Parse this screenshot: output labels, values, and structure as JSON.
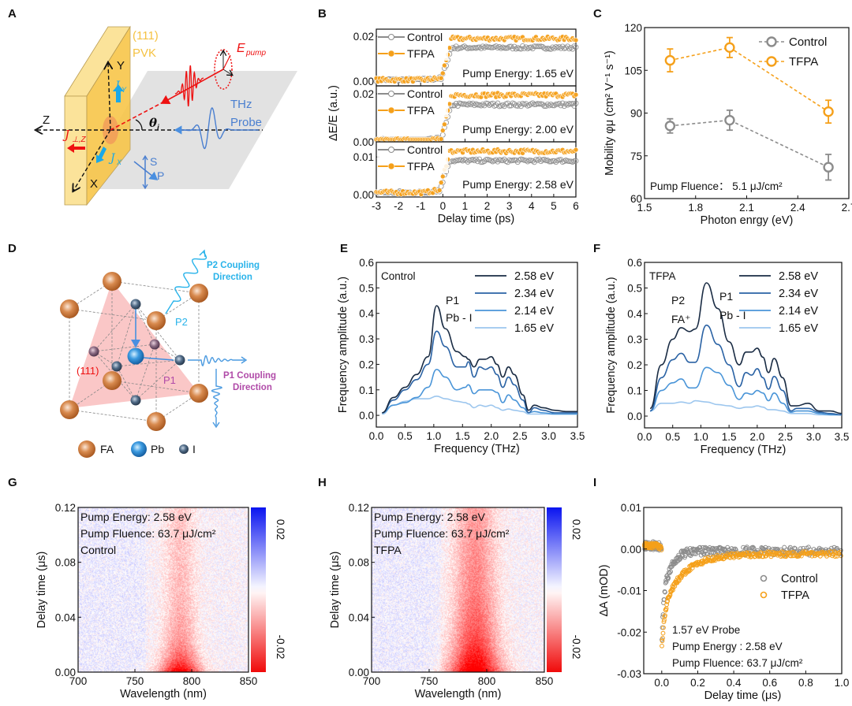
{
  "panels": {
    "A": {
      "letter": "A",
      "facet": "(111)",
      "material": "PVK",
      "e_pump": "E",
      "e_pump_sub": "pump",
      "axis_y": "Y",
      "axis_z": "Z",
      "axis_x": "X",
      "theta": "θ",
      "theta_sub": "i",
      "thz1": "THz",
      "thz2": "Probe",
      "j_perp": "J",
      "j_perp_sub": "⊥,Z",
      "j_y": "J",
      "j_y_sub": "Y",
      "j_x": "J",
      "j_x_sub": "X",
      "pol_s": "S",
      "pol_p": "P"
    },
    "D": {
      "letter": "D",
      "p2_dir1": "P2 Coupling",
      "p2_dir2": "Direction",
      "p2": "P2",
      "facet": "(111)",
      "p1": "P1",
      "p1_dir1": "P1 Coupling",
      "p1_dir2": "Direction",
      "legend": [
        "FA",
        "Pb",
        "I"
      ]
    },
    "B": {
      "letter": "B"
    },
    "C": {
      "letter": "C"
    },
    "E": {
      "letter": "E"
    },
    "F": {
      "letter": "F"
    },
    "G": {
      "letter": "G"
    },
    "H": {
      "letter": "H"
    },
    "I": {
      "letter": "I"
    }
  },
  "colors": {
    "control": "#8c8c8c",
    "tfpa": "#f5a01a",
    "e258": "#1a2c44",
    "e234": "#2a62a4",
    "e214": "#4a95d8",
    "e165": "#9cc6ee",
    "red": "#ee1111",
    "blue": "#1a1aee",
    "facet": "#f5c242"
  },
  "chart_data": [
    {
      "id": "B",
      "type": "scatter",
      "xlabel": "Delay time (ps)",
      "ylabel": "ΔE/E (a.u.)",
      "xlim": [
        -3,
        6
      ],
      "xticks": [
        "-3",
        "-2",
        "-1",
        "0",
        "1",
        "2",
        "3",
        "4",
        "5",
        "6"
      ],
      "legend": [
        "Control",
        "TFPA"
      ],
      "subplots": [
        {
          "annotation": "Pump Energy: 1.65 eV",
          "ylim": [
            -0.0021,
            0.0232
          ],
          "yticks": [
            [
              "0.00",
              0
            ],
            [
              "0.02",
              0.02
            ]
          ],
          "control_plateau": 0.015,
          "tfpa_plateau": 0.019,
          "rise_start_ps": -0.1,
          "rise_end_ps": 0.4
        },
        {
          "annotation": "Pump Energy: 2.00 eV",
          "ylim": [
            0.0,
            0.0233
          ],
          "yticks": [
            [
              "0.00",
              0
            ],
            [
              "0.02",
              0.02
            ]
          ],
          "control_plateau": 0.0155,
          "tfpa_plateau": 0.0195,
          "rise_start_ps": -0.1,
          "rise_end_ps": 0.4
        },
        {
          "annotation": "Pump Energy: 2.58 eV",
          "ylim": [
            -0.0006,
            0.014
          ],
          "yticks": [
            [
              "0.00",
              0
            ],
            [
              "0.01",
              0.01
            ]
          ],
          "control_plateau": 0.009,
          "tfpa_plateau": 0.0115,
          "rise_start_ps": -0.2,
          "rise_end_ps": 0.3
        }
      ]
    },
    {
      "id": "C",
      "type": "line",
      "xlabel": "Photon enrgy (eV)",
      "ylabel": "Mobility φμ (cm² V⁻¹ s⁻¹)",
      "xlim": [
        1.5,
        2.7
      ],
      "ylim": [
        60,
        120
      ],
      "xticks": [
        "1.5",
        "1.8",
        "2.1",
        "2.4",
        "2.7"
      ],
      "yticks": [
        "60",
        "75",
        "90",
        "105",
        "120"
      ],
      "annotation": "Pump Fluence： 5.1 μJ/cm²",
      "legend_position": "top-right",
      "x": [
        1.65,
        2.0,
        2.58
      ],
      "series": [
        {
          "name": "Control",
          "values": [
            85.5,
            87.5,
            71.0
          ],
          "errors": [
            2.5,
            3.5,
            4.5
          ]
        },
        {
          "name": "TFPA",
          "values": [
            108.5,
            113.0,
            90.5
          ],
          "errors": [
            4.0,
            3.5,
            4.0
          ]
        }
      ]
    },
    {
      "id": "E",
      "type": "line",
      "label": "Control",
      "xlabel": "Frequency (THz)",
      "ylabel": "Frequency amplitude (a.u.)",
      "xlim": [
        0,
        3.5
      ],
      "ylim": [
        -0.046,
        0.6
      ],
      "xticks": [
        "0.0",
        "0.5",
        "1.0",
        "1.5",
        "2.0",
        "2.5",
        "3.0",
        "3.5"
      ],
      "yticks": [
        "0.0",
        "0.1",
        "0.2",
        "0.3",
        "0.4",
        "0.5",
        "0.6"
      ],
      "annotations": [
        "P1",
        "Pb - I"
      ],
      "x": [
        0.1,
        0.3,
        0.5,
        0.7,
        0.9,
        1.05,
        1.2,
        1.4,
        1.55,
        1.6,
        1.7,
        1.8,
        1.9,
        2.0,
        2.1,
        2.2,
        2.3,
        2.4,
        2.55,
        2.65,
        2.75,
        2.9,
        3.1,
        3.3,
        3.5
      ],
      "series": [
        {
          "name": "2.58 eV",
          "values": [
            0.01,
            0.07,
            0.11,
            0.16,
            0.23,
            0.43,
            0.34,
            0.25,
            0.23,
            0.22,
            0.19,
            0.22,
            0.22,
            0.23,
            0.2,
            0.15,
            0.19,
            0.16,
            0.08,
            0.02,
            0.04,
            0.03,
            0.02,
            0.015,
            0.015
          ]
        },
        {
          "name": "2.34 eV",
          "values": [
            0.01,
            0.06,
            0.1,
            0.14,
            0.2,
            0.33,
            0.27,
            0.19,
            0.19,
            0.21,
            0.15,
            0.19,
            0.18,
            0.19,
            0.16,
            0.11,
            0.15,
            0.12,
            0.06,
            0.01,
            0.03,
            0.02,
            0.01,
            0.01,
            0.01
          ]
        },
        {
          "name": "2.14 eV",
          "values": [
            0.01,
            0.04,
            0.05,
            0.07,
            0.11,
            0.18,
            0.15,
            0.1,
            0.11,
            0.12,
            0.085,
            0.1,
            0.1,
            0.1,
            0.09,
            0.05,
            0.08,
            0.06,
            0.03,
            0.01,
            0.015,
            0.01,
            0.005,
            0.005,
            0.005
          ]
        },
        {
          "name": "1.65 eV",
          "values": [
            0.005,
            0.04,
            0.055,
            0.065,
            0.065,
            0.075,
            0.065,
            0.055,
            0.05,
            0.045,
            0.03,
            0.04,
            0.035,
            0.04,
            0.03,
            0.02,
            0.025,
            0.02,
            0.015,
            0.005,
            0.005,
            0.005,
            0.005,
            0.005,
            0.005
          ]
        }
      ]
    },
    {
      "id": "F",
      "type": "line",
      "label": "TFPA",
      "xlabel": "Frequency (THz)",
      "ylabel": "Frequency amplitude (a.u.)",
      "xlim": [
        0,
        3.5
      ],
      "ylim": [
        -0.046,
        0.6
      ],
      "xticks": [
        "0.0",
        "0.5",
        "1.0",
        "1.5",
        "2.0",
        "2.5",
        "3.0",
        "3.5"
      ],
      "yticks": [
        "0.0",
        "0.1",
        "0.2",
        "0.3",
        "0.4",
        "0.5",
        "0.6"
      ],
      "annotations": [
        "P2",
        "FA⁺",
        "P1",
        "Pb - I"
      ],
      "x": [
        0.1,
        0.3,
        0.5,
        0.65,
        0.8,
        0.9,
        1.1,
        1.3,
        1.5,
        1.68,
        1.8,
        1.9,
        2.0,
        2.1,
        2.2,
        2.3,
        2.45,
        2.6,
        2.7,
        2.9,
        3.1,
        3.3,
        3.5
      ],
      "series": [
        {
          "name": "2.58 eV",
          "values": [
            0.03,
            0.2,
            0.3,
            0.345,
            0.33,
            0.34,
            0.52,
            0.42,
            0.29,
            0.2,
            0.25,
            0.25,
            0.265,
            0.23,
            0.17,
            0.225,
            0.15,
            0.04,
            0.04,
            0.05,
            0.02,
            0.02,
            0.01
          ]
        },
        {
          "name": "2.34 eV",
          "values": [
            0.02,
            0.15,
            0.22,
            0.245,
            0.21,
            0.21,
            0.355,
            0.28,
            0.2,
            0.115,
            0.17,
            0.16,
            0.185,
            0.15,
            0.105,
            0.155,
            0.1,
            0.02,
            0.03,
            0.03,
            0.015,
            0.01,
            0.005
          ]
        },
        {
          "name": "2.14 eV",
          "values": [
            0.02,
            0.1,
            0.13,
            0.145,
            0.11,
            0.11,
            0.19,
            0.17,
            0.12,
            0.065,
            0.09,
            0.085,
            0.1,
            0.09,
            0.06,
            0.09,
            0.05,
            0.015,
            0.02,
            0.02,
            0.01,
            0.005,
            0.005
          ]
        },
        {
          "name": "1.65 eV",
          "values": [
            0.02,
            0.05,
            0.05,
            0.055,
            0.05,
            0.06,
            0.055,
            0.045,
            0.04,
            0.03,
            0.035,
            0.035,
            0.04,
            0.035,
            0.025,
            0.025,
            0.02,
            0.01,
            0.01,
            0.01,
            0.005,
            0.005,
            0.005
          ]
        }
      ]
    },
    {
      "id": "G",
      "type": "heatmap",
      "xlabel": "Wavelength (nm)",
      "ylabel": "Delay time (μs)",
      "xlim": [
        700,
        850
      ],
      "ylim": [
        0,
        0.12
      ],
      "xticks": [
        "700",
        "750",
        "800",
        "850"
      ],
      "yticks": [
        "0.00",
        "0.04",
        "0.08",
        "0.12"
      ],
      "colorbar": {
        "range": [
          -0.02,
          0.02
        ],
        "labels": [
          "0.02",
          "-0.02"
        ]
      },
      "annotations": [
        "Pump Energy: 2.58 eV",
        "Pump Fluence: 63.7 μJ/cm²",
        "Control"
      ],
      "feature": {
        "center_nm": 790,
        "sigma_nm": 13,
        "peak": -0.022,
        "fast_tau_us": 0.012,
        "tail_fraction": 0.3
      }
    },
    {
      "id": "H",
      "type": "heatmap",
      "xlabel": "Wavelength (nm)",
      "ylabel": "Delay time (μs)",
      "xlim": [
        700,
        850
      ],
      "ylim": [
        0,
        0.12
      ],
      "xticks": [
        "700",
        "750",
        "800",
        "850"
      ],
      "yticks": [
        "0.00",
        "0.04",
        "0.08",
        "0.12"
      ],
      "colorbar": {
        "range": [
          -0.02,
          0.02
        ],
        "labels": [
          "0.02",
          "-0.02"
        ]
      },
      "annotations": [
        "Pump Energy: 2.58 eV",
        "Pump Fluence: 63.7 μJ/cm²",
        "TFPA"
      ],
      "feature": {
        "center_nm": 790,
        "sigma_nm": 16,
        "peak": -0.024,
        "fast_tau_us": 0.02,
        "tail_fraction": 0.5
      }
    },
    {
      "id": "I",
      "type": "scatter",
      "xlabel": "Delay time (μs)",
      "ylabel": "ΔA (mOD)",
      "xlim": [
        -0.1,
        1.0
      ],
      "ylim": [
        -0.03,
        0.01
      ],
      "xticks": [
        "0.0",
        "0.2",
        "0.4",
        "0.6",
        "0.8",
        "1.0"
      ],
      "yticks": [
        "-0.03",
        "-0.02",
        "-0.01",
        "0.00",
        "0.01"
      ],
      "legend": [
        "Control",
        "TFPA"
      ],
      "legend_position": "right",
      "annotations": [
        "1.57 eV Probe",
        "Pump Energy : 2.58 eV",
        "Pump Fluence: 63.7 μJ/cm²"
      ],
      "series": [
        {
          "name": "Control",
          "amplitude": -0.024,
          "tau_us": 0.04,
          "offset": -0.0005
        },
        {
          "name": "TFPA",
          "amplitude": -0.024,
          "tau_us": 0.11,
          "offset": -0.0012
        }
      ]
    }
  ]
}
